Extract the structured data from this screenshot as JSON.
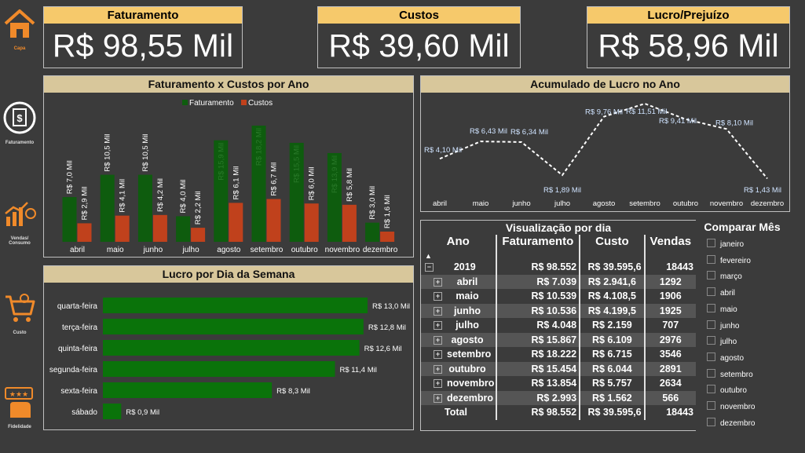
{
  "sidebar": {
    "items": [
      {
        "label": "Capa",
        "icon": "home-icon"
      },
      {
        "label": "Faturamento",
        "icon": "invoice-icon"
      },
      {
        "label": "Vendas/ Consumo",
        "icon": "sales-chart-icon"
      },
      {
        "label": "Custo",
        "icon": "cart-icon"
      },
      {
        "label": "Fidelidade",
        "icon": "rating-hand-icon"
      }
    ]
  },
  "kpis": {
    "faturamento": {
      "title": "Faturamento",
      "value": "R$ 98,55 Mil"
    },
    "custos": {
      "title": "Custos",
      "value": "R$ 39,60 Mil"
    },
    "lucro": {
      "title": "Lucro/Prejuízo",
      "value": "R$ 58,96 Mil"
    }
  },
  "colors": {
    "faturamento": "#0e5c0e",
    "custos": "#c0411c",
    "lucro_bar": "#0a730a",
    "kpi_header": "#f6c96b",
    "panel_header": "#d8c79b"
  },
  "chart_data": [
    {
      "type": "bar",
      "title": "Faturamento x Custos por Ano",
      "categories": [
        "abril",
        "maio",
        "junho",
        "julho",
        "agosto",
        "setembro",
        "outubro",
        "novembro",
        "dezembro"
      ],
      "series": [
        {
          "name": "Faturamento",
          "values": [
            7.0,
            10.5,
            10.5,
            4.0,
            15.9,
            18.2,
            15.5,
            13.9,
            3.0
          ],
          "labels": [
            "R$ 7,0 Mil",
            "R$ 10,5 Mil",
            "R$ 10,5 Mil",
            "R$ 4,0 Mil",
            "R$ 15,9 Mil",
            "R$ 18,2 Mil",
            "R$ 15,5 Mil",
            "R$ 13,9 Mil",
            "R$ 3,0 Mil"
          ]
        },
        {
          "name": "Custos",
          "values": [
            2.9,
            4.1,
            4.2,
            2.2,
            6.1,
            6.7,
            6.0,
            5.8,
            1.6
          ],
          "labels": [
            "R$ 2,9 Mil",
            "R$ 4,1 Mil",
            "R$ 4,2 Mil",
            "R$ 2,2 Mil",
            "R$ 6,1 Mil",
            "R$ 6,7 Mil",
            "R$ 6,0 Mil",
            "R$ 5,8 Mil",
            "R$ 1,6 Mil"
          ]
        }
      ],
      "legend": "top-center"
    },
    {
      "type": "line",
      "title": "Acumulado de Lucro no Ano",
      "categories": [
        "abril",
        "maio",
        "junho",
        "julho",
        "agosto",
        "setembro",
        "outubro",
        "novembro",
        "dezembro"
      ],
      "series": [
        {
          "values": [
            4.1,
            6.43,
            6.34,
            1.89,
            9.76,
            11.51,
            9.41,
            8.1,
            1.43
          ],
          "labels": [
            "R$ 4,10 Mil",
            "R$ 6,43 Mil",
            "R$ 6,34 Mil",
            "R$ 1,89 Mil",
            "R$ 9,76 Mil",
            "R$ 11,51 Mil",
            "R$ 9,41 Mil",
            "R$ 8,10 Mil",
            "R$ 1,43 Mil"
          ]
        }
      ]
    },
    {
      "type": "bar",
      "orientation": "horizontal",
      "title": "Lucro por Dia da Semana",
      "categories": [
        "quarta-feira",
        "terça-feira",
        "quinta-feira",
        "segunda-feira",
        "sexta-feira",
        "sábado"
      ],
      "values": [
        13.0,
        12.8,
        12.6,
        11.4,
        8.3,
        0.9
      ],
      "labels": [
        "R$ 13,0 Mil",
        "R$ 12,8 Mil",
        "R$ 12,6 Mil",
        "R$ 11,4 Mil",
        "R$ 8,3 Mil",
        "R$ 0,9 Mil"
      ]
    }
  ],
  "table": {
    "title": "Visualização por dia",
    "headers": [
      "Ano",
      "Faturamento",
      "Custo",
      "Vendas"
    ],
    "year_row": {
      "ano": "2019",
      "faturamento": "R$ 98.552",
      "custo": "R$ 39.595,6",
      "vendas": "18443"
    },
    "rows": [
      {
        "mes": "abril",
        "faturamento": "R$ 7.039",
        "custo": "R$ 2.941,6",
        "vendas": "1292"
      },
      {
        "mes": "maio",
        "faturamento": "R$ 10.539",
        "custo": "R$ 4.108,5",
        "vendas": "1906"
      },
      {
        "mes": "junho",
        "faturamento": "R$ 10.536",
        "custo": "R$ 4.199,5",
        "vendas": "1925"
      },
      {
        "mes": "julho",
        "faturamento": "R$ 4.048",
        "custo": "R$ 2.159",
        "vendas": "707"
      },
      {
        "mes": "agosto",
        "faturamento": "R$ 15.867",
        "custo": "R$ 6.109",
        "vendas": "2976"
      },
      {
        "mes": "setembro",
        "faturamento": "R$ 18.222",
        "custo": "R$ 6.715",
        "vendas": "3546"
      },
      {
        "mes": "outubro",
        "faturamento": "R$ 15.454",
        "custo": "R$ 6.044",
        "vendas": "2891"
      },
      {
        "mes": "novembro",
        "faturamento": "R$ 13.854",
        "custo": "R$ 5.757",
        "vendas": "2634"
      },
      {
        "mes": "dezembro",
        "faturamento": "R$ 2.993",
        "custo": "R$ 1.562",
        "vendas": "566"
      }
    ],
    "total": {
      "label": "Total",
      "faturamento": "R$ 98.552",
      "custo": "R$ 39.595,6",
      "vendas": "18443"
    }
  },
  "slicer": {
    "title": "Comparar Mês",
    "options": [
      "janeiro",
      "fevereiro",
      "março",
      "abril",
      "maio",
      "junho",
      "julho",
      "agosto",
      "setembro",
      "outubro",
      "novembro",
      "dezembro"
    ]
  }
}
